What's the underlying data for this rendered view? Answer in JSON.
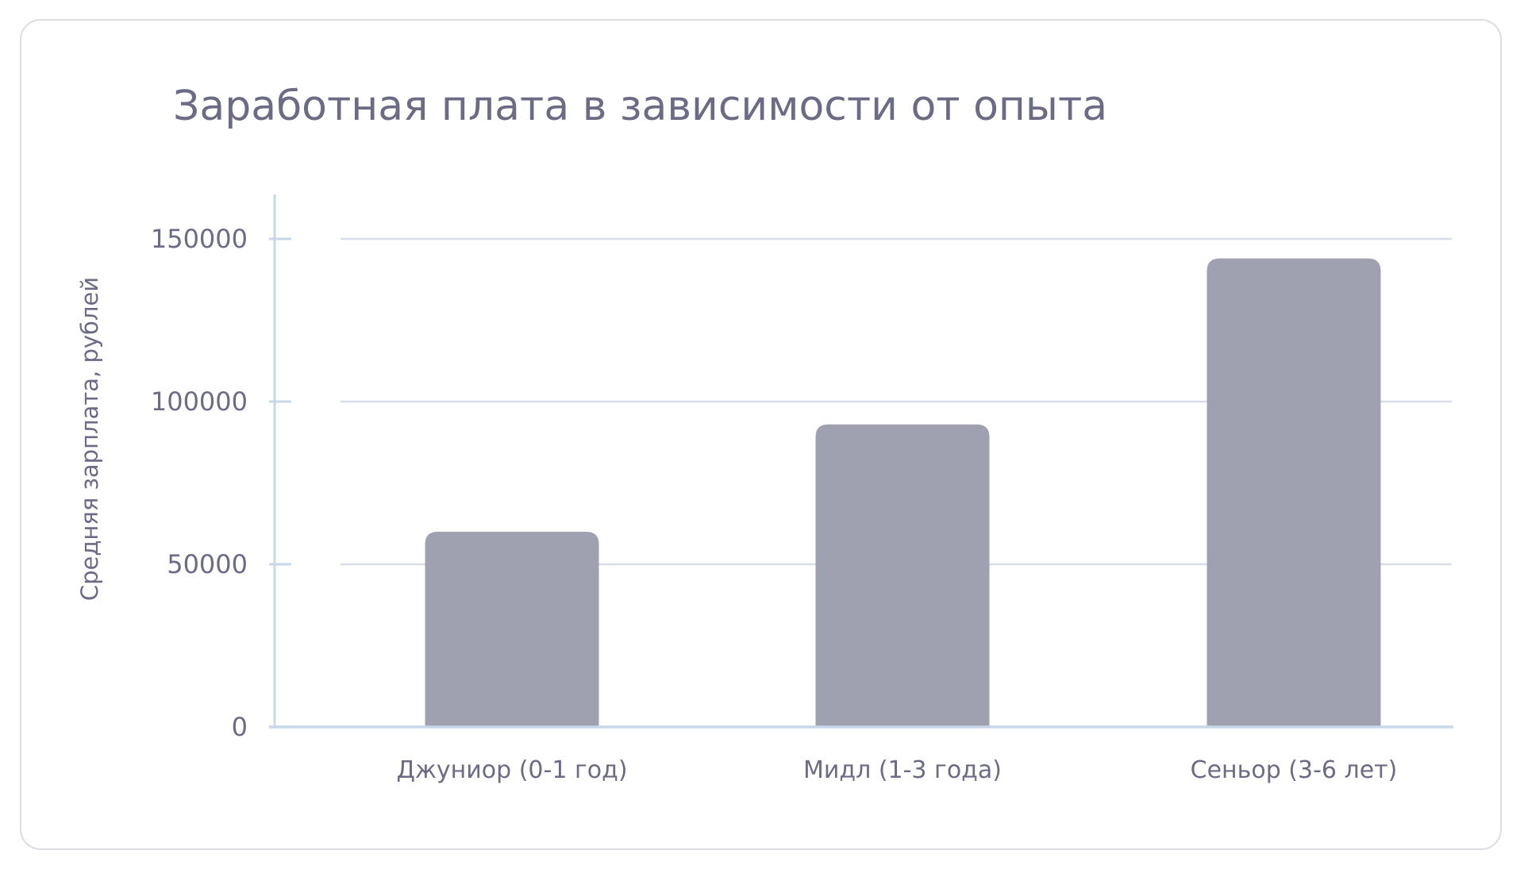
{
  "chart_data": {
    "type": "bar",
    "title": "Заработная плата в зависимости от опыта",
    "xlabel": "",
    "ylabel": "Средняя зарплата, рублей",
    "categories": [
      "Джуниор (0-1 год)",
      "Мидл (1-3 года)",
      "Сеньор (3-6 лет)"
    ],
    "values": [
      60000,
      93000,
      144000
    ],
    "ylim": [
      0,
      150000
    ],
    "yticks": [
      0,
      50000,
      100000,
      150000
    ],
    "ytick_labels": [
      "0",
      "50000",
      "100000",
      "150000"
    ],
    "grid": true,
    "legend": "none",
    "colors": {
      "bar": "#9fa1b0",
      "text": "#6b6b85",
      "grid": "#d8dde8",
      "axis": "#c9d7ea"
    }
  }
}
